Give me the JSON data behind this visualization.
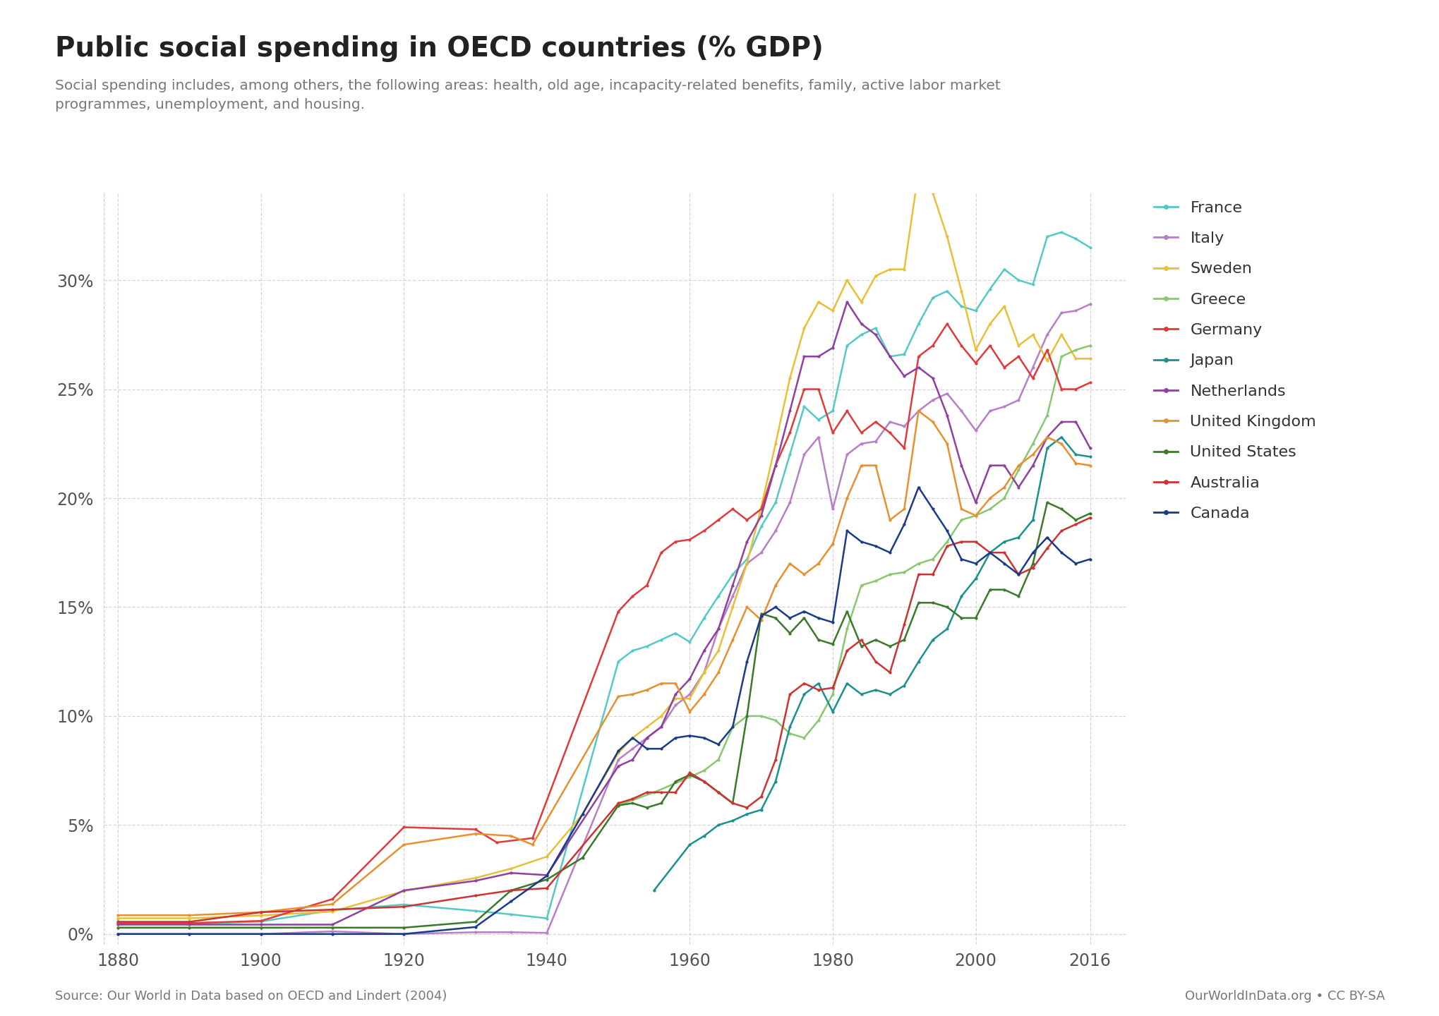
{
  "title": "Public social spending in OECD countries (% GDP)",
  "subtitle": "Social spending includes, among others, the following areas: health, old age, incapacity-related benefits, family, active labor market\nprogrammes, unemployment, and housing.",
  "source_left": "Source: Our World in Data based on OECD and Lindert (2004)",
  "source_right": "OurWorldInData.org • CC BY-SA",
  "background_color": "#ffffff",
  "grid_color": "#cccccc",
  "title_color": "#222222",
  "subtitle_color": "#777777",
  "source_color": "#777777",
  "yticks": [
    0,
    5,
    10,
    15,
    20,
    25,
    30
  ],
  "ylim": [
    -0.5,
    34
  ],
  "xlim": [
    1878,
    2021
  ],
  "xticks": [
    1880,
    1900,
    1920,
    1940,
    1960,
    1980,
    2000,
    2016
  ],
  "countries": {
    "France": {
      "color": "#55c8c8",
      "data": {
        "1880": 0.46,
        "1890": 0.46,
        "1900": 0.57,
        "1910": 1.09,
        "1920": 1.35,
        "1930": 1.06,
        "1935": 0.9,
        "1940": 0.72,
        "1950": 12.5,
        "1952": 13.0,
        "1954": 13.2,
        "1956": 13.5,
        "1958": 13.8,
        "1960": 13.4,
        "1962": 14.5,
        "1964": 15.5,
        "1966": 16.5,
        "1968": 17.2,
        "1970": 18.7,
        "1972": 19.8,
        "1974": 22.0,
        "1976": 24.2,
        "1978": 23.6,
        "1980": 24.0,
        "1982": 27.0,
        "1984": 27.5,
        "1986": 27.8,
        "1988": 26.5,
        "1990": 26.6,
        "1992": 28.0,
        "1994": 29.2,
        "1996": 29.5,
        "1998": 28.8,
        "2000": 28.6,
        "2002": 29.6,
        "2004": 30.5,
        "2006": 30.0,
        "2008": 29.8,
        "2010": 32.0,
        "2012": 32.2,
        "2014": 31.9,
        "2016": 31.5
      }
    },
    "Italy": {
      "color": "#b87ec8",
      "data": {
        "1880": 0.0,
        "1890": 0.0,
        "1900": 0.0,
        "1910": 0.12,
        "1920": 0.0,
        "1930": 0.08,
        "1935": 0.08,
        "1940": 0.05,
        "1950": 8.0,
        "1952": 8.5,
        "1954": 9.0,
        "1956": 9.5,
        "1958": 10.5,
        "1960": 11.0,
        "1962": 12.0,
        "1964": 14.0,
        "1966": 15.5,
        "1968": 17.0,
        "1970": 17.5,
        "1972": 18.5,
        "1974": 19.8,
        "1976": 22.0,
        "1978": 22.8,
        "1980": 19.5,
        "1982": 22.0,
        "1984": 22.5,
        "1986": 22.6,
        "1988": 23.5,
        "1990": 23.3,
        "1992": 24.0,
        "1994": 24.5,
        "1996": 24.8,
        "1998": 24.0,
        "2000": 23.1,
        "2002": 24.0,
        "2004": 24.2,
        "2006": 24.5,
        "2008": 26.0,
        "2010": 27.5,
        "2012": 28.5,
        "2014": 28.6,
        "2016": 28.9
      }
    },
    "Sweden": {
      "color": "#e8c038",
      "data": {
        "1880": 0.72,
        "1890": 0.72,
        "1900": 0.85,
        "1910": 1.03,
        "1920": 1.97,
        "1930": 2.57,
        "1935": 3.0,
        "1940": 3.55,
        "1945": 5.5,
        "1950": 8.3,
        "1952": 9.0,
        "1954": 9.5,
        "1956": 10.0,
        "1958": 10.8,
        "1960": 10.8,
        "1962": 12.0,
        "1964": 13.0,
        "1966": 15.0,
        "1968": 17.0,
        "1970": 19.6,
        "1972": 22.5,
        "1974": 25.5,
        "1976": 27.8,
        "1978": 29.0,
        "1980": 28.6,
        "1982": 30.0,
        "1984": 29.0,
        "1986": 30.2,
        "1988": 30.5,
        "1990": 30.5,
        "1992": 35.0,
        "1994": 34.0,
        "1996": 32.0,
        "1998": 29.5,
        "2000": 26.8,
        "2002": 28.0,
        "2004": 28.8,
        "2006": 27.0,
        "2008": 27.5,
        "2010": 26.3,
        "2012": 27.5,
        "2014": 26.4,
        "2016": 26.4
      }
    },
    "Greece": {
      "color": "#88c870",
      "data": {
        "1950": 5.9,
        "1955": 6.5,
        "1960": 7.2,
        "1962": 7.5,
        "1964": 8.0,
        "1966": 9.5,
        "1968": 10.0,
        "1970": 10.0,
        "1972": 9.8,
        "1974": 9.2,
        "1976": 9.0,
        "1978": 9.8,
        "1980": 11.0,
        "1982": 14.0,
        "1984": 16.0,
        "1986": 16.2,
        "1988": 16.5,
        "1990": 16.6,
        "1992": 17.0,
        "1994": 17.2,
        "1996": 18.0,
        "1998": 19.0,
        "2000": 19.2,
        "2002": 19.5,
        "2004": 20.0,
        "2006": 21.3,
        "2008": 22.5,
        "2010": 23.8,
        "2012": 26.5,
        "2014": 26.8,
        "2016": 27.0
      }
    },
    "Germany": {
      "color": "#e03a3a",
      "data": {
        "1880": 0.5,
        "1890": 0.5,
        "1900": 0.6,
        "1910": 1.6,
        "1920": 4.9,
        "1930": 4.8,
        "1933": 4.2,
        "1938": 4.4,
        "1950": 14.8,
        "1952": 15.5,
        "1954": 16.0,
        "1956": 17.5,
        "1958": 18.0,
        "1960": 18.1,
        "1962": 18.5,
        "1964": 19.0,
        "1966": 19.5,
        "1968": 19.0,
        "1970": 19.5,
        "1972": 21.5,
        "1974": 23.0,
        "1976": 25.0,
        "1978": 25.0,
        "1980": 23.0,
        "1982": 24.0,
        "1984": 23.0,
        "1986": 23.5,
        "1988": 23.0,
        "1990": 22.3,
        "1992": 26.5,
        "1994": 27.0,
        "1996": 28.0,
        "1998": 27.0,
        "2000": 26.2,
        "2002": 27.0,
        "2004": 26.0,
        "2006": 26.5,
        "2008": 25.5,
        "2010": 26.8,
        "2012": 25.0,
        "2014": 25.0,
        "2016": 25.3
      }
    },
    "Japan": {
      "color": "#1a9090",
      "data": {
        "1955": 2.0,
        "1960": 4.1,
        "1962": 4.5,
        "1964": 5.0,
        "1966": 5.2,
        "1968": 5.5,
        "1970": 5.7,
        "1972": 7.0,
        "1974": 9.5,
        "1976": 11.0,
        "1978": 11.5,
        "1980": 10.2,
        "1982": 11.5,
        "1984": 11.0,
        "1986": 11.2,
        "1988": 11.0,
        "1990": 11.4,
        "1992": 12.5,
        "1994": 13.5,
        "1996": 14.0,
        "1998": 15.5,
        "2000": 16.3,
        "2002": 17.5,
        "2004": 18.0,
        "2006": 18.2,
        "2008": 19.0,
        "2010": 22.3,
        "2012": 22.8,
        "2014": 22.0,
        "2016": 21.9
      }
    },
    "Netherlands": {
      "color": "#9040a0",
      "data": {
        "1880": 0.43,
        "1890": 0.43,
        "1900": 0.43,
        "1910": 0.43,
        "1920": 2.0,
        "1930": 2.44,
        "1935": 2.8,
        "1940": 2.7,
        "1950": 7.7,
        "1952": 8.0,
        "1954": 9.0,
        "1956": 9.5,
        "1958": 11.0,
        "1960": 11.7,
        "1962": 13.0,
        "1964": 14.0,
        "1966": 16.0,
        "1968": 18.0,
        "1970": 19.2,
        "1972": 21.5,
        "1974": 24.0,
        "1976": 26.5,
        "1978": 26.5,
        "1980": 26.9,
        "1982": 29.0,
        "1984": 28.0,
        "1986": 27.5,
        "1988": 26.5,
        "1990": 25.6,
        "1992": 26.0,
        "1994": 25.5,
        "1996": 23.8,
        "1998": 21.5,
        "2000": 19.8,
        "2002": 21.5,
        "2004": 21.5,
        "2006": 20.5,
        "2008": 21.5,
        "2010": 22.8,
        "2012": 23.5,
        "2014": 23.5,
        "2016": 22.3
      }
    },
    "United Kingdom": {
      "color": "#e89030",
      "data": {
        "1880": 0.86,
        "1890": 0.86,
        "1900": 1.0,
        "1910": 1.37,
        "1920": 4.1,
        "1930": 4.6,
        "1935": 4.5,
        "1938": 4.1,
        "1950": 10.9,
        "1952": 11.0,
        "1954": 11.2,
        "1956": 11.5,
        "1958": 11.5,
        "1960": 10.2,
        "1962": 11.0,
        "1964": 12.0,
        "1966": 13.5,
        "1968": 15.0,
        "1970": 14.4,
        "1972": 16.0,
        "1974": 17.0,
        "1976": 16.5,
        "1978": 17.0,
        "1980": 17.9,
        "1982": 20.0,
        "1984": 21.5,
        "1986": 21.5,
        "1988": 19.0,
        "1990": 19.5,
        "1992": 24.0,
        "1994": 23.5,
        "1996": 22.5,
        "1998": 19.5,
        "2000": 19.2,
        "2002": 20.0,
        "2004": 20.5,
        "2006": 21.5,
        "2008": 22.0,
        "2010": 22.8,
        "2012": 22.5,
        "2014": 21.6,
        "2016": 21.5
      }
    },
    "United States": {
      "color": "#3a7a2a",
      "data": {
        "1880": 0.29,
        "1890": 0.29,
        "1900": 0.29,
        "1910": 0.29,
        "1920": 0.29,
        "1930": 0.56,
        "1935": 2.0,
        "1940": 2.5,
        "1945": 3.5,
        "1950": 5.9,
        "1952": 6.0,
        "1954": 5.8,
        "1956": 6.0,
        "1958": 7.0,
        "1960": 7.3,
        "1962": 7.0,
        "1964": 6.5,
        "1966": 6.0,
        "1968": 10.0,
        "1970": 14.7,
        "1972": 14.5,
        "1974": 13.8,
        "1976": 14.5,
        "1978": 13.5,
        "1980": 13.3,
        "1982": 14.8,
        "1984": 13.2,
        "1986": 13.5,
        "1988": 13.2,
        "1990": 13.5,
        "1992": 15.2,
        "1994": 15.2,
        "1996": 15.0,
        "1998": 14.5,
        "2000": 14.5,
        "2002": 15.8,
        "2004": 15.8,
        "2006": 15.5,
        "2008": 17.0,
        "2010": 19.8,
        "2012": 19.5,
        "2014": 19.0,
        "2016": 19.3
      }
    },
    "Australia": {
      "color": "#cc3333",
      "data": {
        "1880": 0.56,
        "1890": 0.56,
        "1900": 1.0,
        "1910": 1.12,
        "1920": 1.25,
        "1930": 1.76,
        "1935": 2.0,
        "1940": 2.1,
        "1950": 6.0,
        "1952": 6.2,
        "1954": 6.5,
        "1956": 6.5,
        "1958": 6.5,
        "1960": 7.4,
        "1962": 7.0,
        "1964": 6.5,
        "1966": 6.0,
        "1968": 5.8,
        "1970": 6.3,
        "1972": 8.0,
        "1974": 11.0,
        "1976": 11.5,
        "1978": 11.2,
        "1980": 11.3,
        "1982": 13.0,
        "1984": 13.5,
        "1986": 12.5,
        "1988": 12.0,
        "1990": 14.2,
        "1992": 16.5,
        "1994": 16.5,
        "1996": 17.8,
        "1998": 18.0,
        "2000": 18.0,
        "2002": 17.5,
        "2004": 17.5,
        "2006": 16.5,
        "2008": 16.8,
        "2010": 17.7,
        "2012": 18.5,
        "2014": 18.8,
        "2016": 19.1
      }
    },
    "Canada": {
      "color": "#1a3a8a",
      "data": {
        "1880": 0.0,
        "1890": 0.0,
        "1900": 0.0,
        "1910": 0.0,
        "1920": 0.0,
        "1930": 0.32,
        "1935": 1.5,
        "1940": 2.67,
        "1945": 5.5,
        "1950": 8.4,
        "1952": 9.0,
        "1954": 8.5,
        "1956": 8.5,
        "1958": 9.0,
        "1960": 9.1,
        "1962": 9.0,
        "1964": 8.7,
        "1966": 9.5,
        "1968": 12.5,
        "1970": 14.6,
        "1972": 15.0,
        "1974": 14.5,
        "1976": 14.8,
        "1978": 14.5,
        "1980": 14.3,
        "1982": 18.5,
        "1984": 18.0,
        "1986": 17.8,
        "1988": 17.5,
        "1990": 18.8,
        "1992": 20.5,
        "1994": 19.5,
        "1996": 18.5,
        "1998": 17.2,
        "2000": 17.0,
        "2002": 17.5,
        "2004": 17.0,
        "2006": 16.5,
        "2008": 17.5,
        "2010": 18.2,
        "2012": 17.5,
        "2014": 17.0,
        "2016": 17.2
      }
    }
  }
}
